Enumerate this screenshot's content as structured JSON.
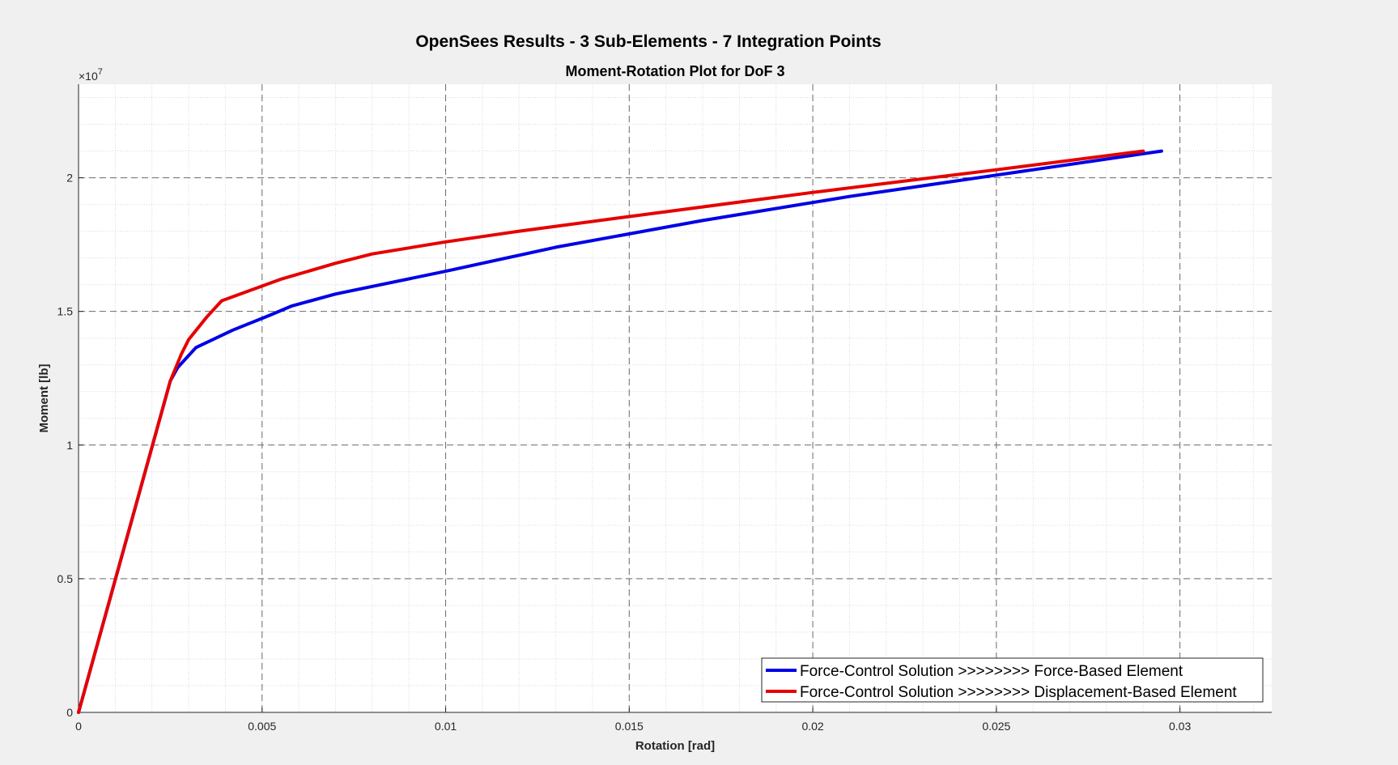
{
  "chart_data": {
    "type": "line",
    "title": "OpenSees Results - 3 Sub-Elements - 7 Integration Points",
    "subtitle": "Moment-Rotation Plot for DoF 3",
    "xlabel": "Rotation [rad]",
    "ylabel": "Moment [lb]",
    "y_exponent_label": "×10",
    "y_exponent_power": "7",
    "xlim": [
      0,
      0.0325
    ],
    "ylim": [
      0,
      23500000
    ],
    "x_ticks": [
      0,
      0.005,
      0.01,
      0.015,
      0.02,
      0.025,
      0.03
    ],
    "x_tick_labels": [
      "0",
      "0.005",
      "0.01",
      "0.015",
      "0.02",
      "0.025",
      "0.03"
    ],
    "y_ticks": [
      0,
      5000000,
      10000000,
      15000000,
      20000000
    ],
    "y_tick_labels": [
      "0",
      "0.5",
      "1",
      "1.5",
      "2"
    ],
    "grid": true,
    "minor_grid": true,
    "legend_position": "bottom-right",
    "series": [
      {
        "name": "Force-Control Solution >>>>>>>> Force-Based Element",
        "color": "#0000e6",
        "x": [
          0,
          0.0025,
          0.0027,
          0.0032,
          0.0042,
          0.0052,
          0.0058,
          0.007,
          0.01,
          0.013,
          0.017,
          0.021,
          0.025,
          0.0295
        ],
        "y": [
          0,
          12400000,
          12900000,
          13650000,
          14300000,
          14850000,
          15200000,
          15650000,
          16500000,
          17400000,
          18400000,
          19300000,
          20100000,
          21000000
        ]
      },
      {
        "name": "Force-Control Solution >>>>>>>> Displacement-Based Element",
        "color": "#e60000",
        "x": [
          0,
          0.0025,
          0.0028,
          0.003,
          0.0035,
          0.0039,
          0.0045,
          0.0055,
          0.007,
          0.008,
          0.01,
          0.012,
          0.015,
          0.02,
          0.025,
          0.029
        ],
        "y": [
          0,
          12400000,
          13400000,
          13950000,
          14800000,
          15400000,
          15700000,
          16200000,
          16800000,
          17150000,
          17600000,
          18000000,
          18550000,
          19450000,
          20300000,
          21000000
        ]
      }
    ]
  }
}
